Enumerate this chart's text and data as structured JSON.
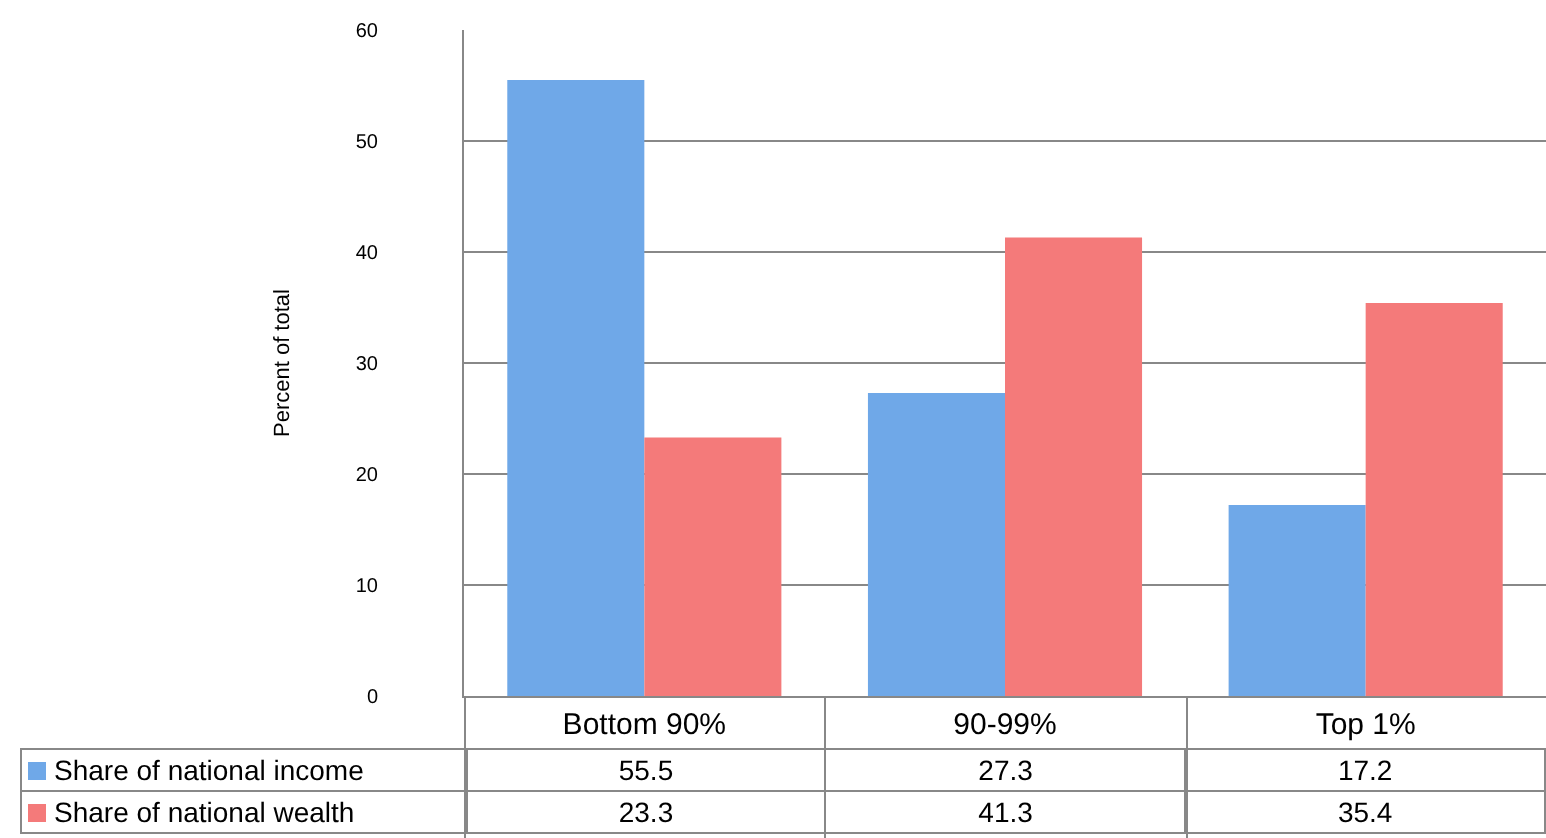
{
  "chart_data": {
    "type": "bar",
    "ylabel": "Percent of total",
    "categories": [
      "Bottom 90%",
      "90-99%",
      "Top 1%"
    ],
    "series": [
      {
        "name": "Share of national income",
        "color": "#6fa8e8",
        "values": [
          55.5,
          27.3,
          17.2
        ]
      },
      {
        "name": "Share of national wealth",
        "color": "#f47a7a",
        "values": [
          23.3,
          41.3,
          35.4
        ]
      }
    ],
    "ylim": [
      0,
      60
    ],
    "yticks": [
      0,
      10,
      20,
      30,
      40,
      50,
      60
    ],
    "grid": "y",
    "legend": "bottom",
    "data_labels": true
  }
}
